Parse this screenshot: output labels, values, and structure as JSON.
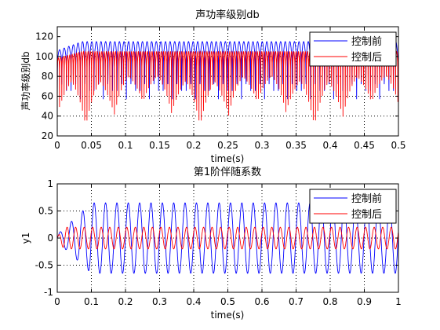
{
  "colors": {
    "before": "#0000ff",
    "after": "#ff0000",
    "axis": "#000000",
    "background": "#ffffff"
  },
  "chart_data": [
    {
      "type": "line",
      "title": "声功率级别db",
      "xlabel": "time(s)",
      "ylabel": "声功率级别db",
      "xlim": [
        0,
        0.5
      ],
      "ylim": [
        20,
        130
      ],
      "xticks": [
        0,
        0.05,
        0.1,
        0.15,
        0.2,
        0.25,
        0.3,
        0.35,
        0.4,
        0.45,
        0.5
      ],
      "xtick_labels": [
        "0",
        "0.05",
        "0.1",
        "0.15",
        "0.2",
        "0.25",
        "0.3",
        "0.35",
        "0.4",
        "0.45",
        "0.5"
      ],
      "yticks": [
        20,
        40,
        60,
        80,
        100,
        120
      ],
      "ytick_labels": [
        "20",
        "40",
        "60",
        "80",
        "100",
        "120"
      ],
      "grid": true,
      "legend": "top-right",
      "series": [
        {
          "name": "控制前",
          "color": "#0000ff",
          "baseline": 95,
          "steady_peak": 115,
          "period": 0.0135,
          "dips_to": [
            60,
            65
          ]
        },
        {
          "name": "控制后",
          "color": "#ff0000",
          "baseline": 90,
          "steady_peak": 105,
          "period": 0.0067,
          "dips_to": [
            55,
            35
          ]
        }
      ]
    },
    {
      "type": "line",
      "title": "第1阶伴随系数",
      "xlabel": "time(s)",
      "ylabel": "y1",
      "xlim": [
        0,
        1
      ],
      "ylim": [
        -1,
        1
      ],
      "xticks": [
        0,
        0.1,
        0.2,
        0.3,
        0.4,
        0.5,
        0.6,
        0.7,
        0.8,
        0.9,
        1
      ],
      "xtick_labels": [
        "0",
        "0.1",
        "0.2",
        "0.3",
        "0.4",
        "0.5",
        "0.6",
        "0.7",
        "0.8",
        "0.9",
        "1"
      ],
      "yticks": [
        -1,
        -0.5,
        0,
        0.5,
        1
      ],
      "ytick_labels": [
        "-1",
        "-0.5",
        "0",
        "0.5",
        "1"
      ],
      "grid": true,
      "legend": "top-right",
      "series": [
        {
          "name": "控制前",
          "color": "#0000ff",
          "amplitude": 0.65,
          "period": 0.0333,
          "ramp_end": 0.1
        },
        {
          "name": "控制后",
          "color": "#ff0000",
          "amplitude": 0.2,
          "period": 0.025,
          "ramp_end": 0.02
        }
      ]
    }
  ]
}
